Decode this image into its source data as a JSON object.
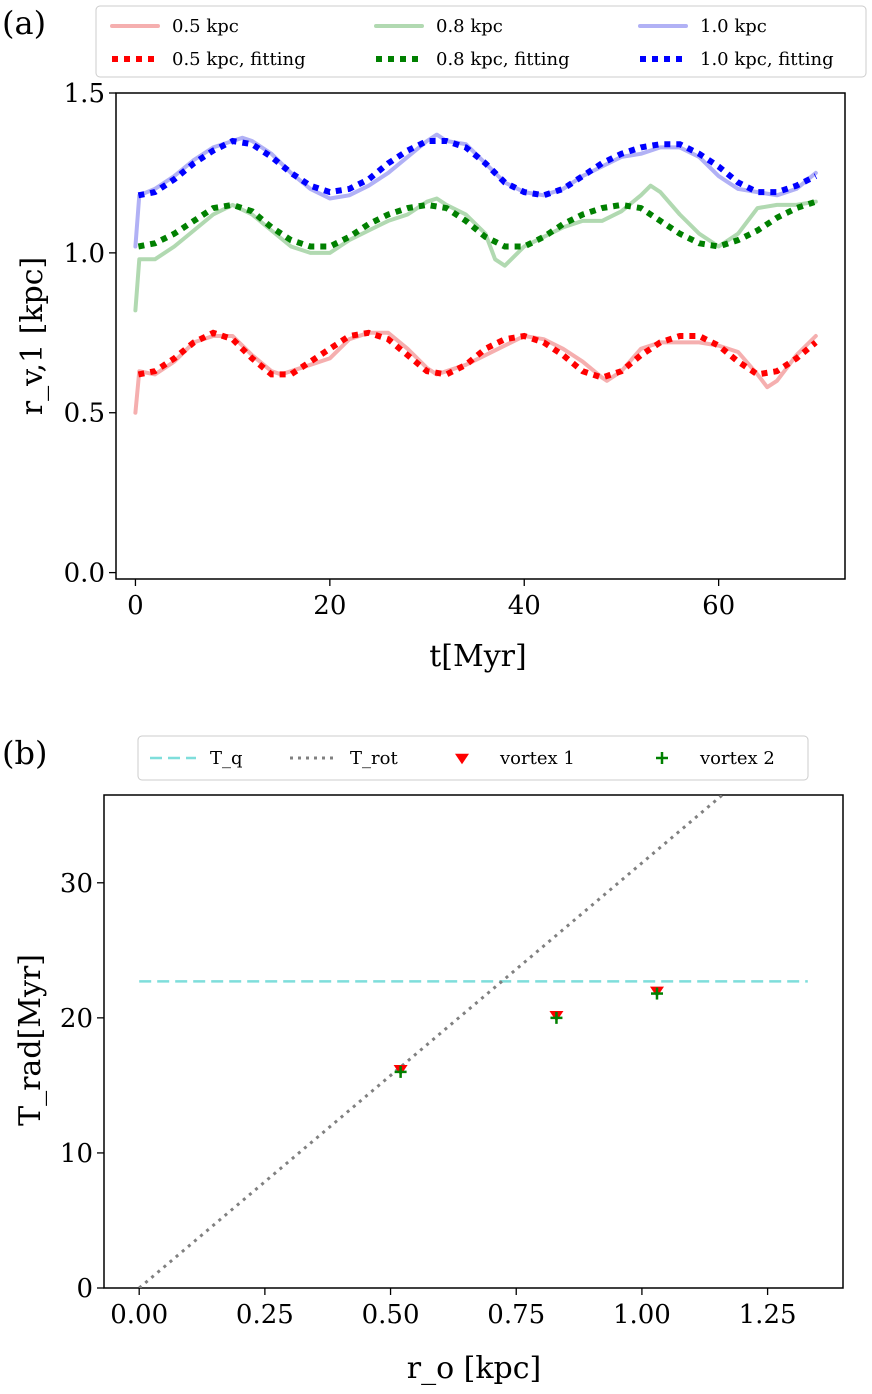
{
  "chart_data": [
    {
      "panel_label": "(a)",
      "type": "line",
      "xlabel": "t[Myr]",
      "ylabel": "r_v,1 [kpc]",
      "xlim": [
        -2,
        73
      ],
      "ylim": [
        -0.02,
        1.5
      ],
      "xticks": [
        0,
        20,
        40,
        60
      ],
      "xtick_labels": [
        "0",
        "20",
        "40",
        "60"
      ],
      "yticks": [
        0.0,
        0.5,
        1.0,
        1.5
      ],
      "ytick_labels": [
        "0.0",
        "0.5",
        "1.0",
        "1.5"
      ],
      "grid": false,
      "legend_position": "top",
      "series": [
        {
          "name": "0.5 kpc",
          "style": "solid",
          "color": "#f4a6a6",
          "x": [
            0,
            0.4,
            2,
            4,
            6,
            8,
            10,
            12,
            14,
            15,
            16,
            18,
            20,
            22,
            24,
            26,
            28,
            30,
            31,
            32,
            34,
            36,
            38,
            40,
            42,
            44,
            46,
            48,
            48.5,
            50,
            52,
            54,
            56,
            58,
            60,
            62,
            64,
            65,
            66,
            68,
            70
          ],
          "y": [
            0.5,
            0.63,
            0.62,
            0.66,
            0.72,
            0.74,
            0.74,
            0.68,
            0.63,
            0.62,
            0.63,
            0.65,
            0.67,
            0.73,
            0.75,
            0.75,
            0.7,
            0.64,
            0.62,
            0.63,
            0.65,
            0.68,
            0.71,
            0.74,
            0.73,
            0.7,
            0.66,
            0.61,
            0.6,
            0.63,
            0.7,
            0.72,
            0.72,
            0.72,
            0.71,
            0.69,
            0.62,
            0.58,
            0.6,
            0.68,
            0.74
          ]
        },
        {
          "name": "0.5 kpc, fitting",
          "style": "dotted",
          "color": "#ff0000",
          "x": [
            0.3,
            2,
            4,
            6,
            8,
            10,
            12,
            14,
            16,
            18,
            20,
            22,
            24,
            26,
            28,
            30,
            32,
            34,
            36,
            38,
            40,
            42,
            44,
            46,
            48,
            50,
            52,
            54,
            56,
            58,
            60,
            62,
            64,
            66,
            68,
            70
          ],
          "y": [
            0.62,
            0.63,
            0.67,
            0.72,
            0.75,
            0.73,
            0.67,
            0.62,
            0.62,
            0.66,
            0.7,
            0.74,
            0.75,
            0.73,
            0.68,
            0.63,
            0.62,
            0.65,
            0.7,
            0.73,
            0.74,
            0.72,
            0.68,
            0.63,
            0.61,
            0.63,
            0.68,
            0.72,
            0.74,
            0.74,
            0.71,
            0.66,
            0.62,
            0.63,
            0.67,
            0.72
          ]
        },
        {
          "name": "0.8 kpc",
          "style": "solid",
          "color": "#a8d5a8",
          "x": [
            0,
            0.4,
            2,
            4,
            6,
            8,
            10,
            12,
            14,
            16,
            18,
            20,
            22,
            24,
            26,
            28,
            30,
            31,
            32,
            34,
            36,
            37,
            38,
            40,
            42,
            44,
            46,
            48,
            50,
            52,
            53,
            54,
            56,
            58,
            60,
            62,
            64,
            66,
            68,
            70
          ],
          "y": [
            0.82,
            0.98,
            0.98,
            1.02,
            1.07,
            1.12,
            1.15,
            1.12,
            1.07,
            1.02,
            1.0,
            1.0,
            1.04,
            1.07,
            1.1,
            1.12,
            1.16,
            1.17,
            1.15,
            1.12,
            1.06,
            0.98,
            0.96,
            1.02,
            1.05,
            1.08,
            1.1,
            1.1,
            1.13,
            1.18,
            1.21,
            1.19,
            1.12,
            1.06,
            1.02,
            1.06,
            1.14,
            1.15,
            1.15,
            1.16
          ]
        },
        {
          "name": "0.8 kpc, fitting",
          "style": "dotted",
          "color": "#008000",
          "x": [
            0.3,
            2,
            4,
            6,
            8,
            10,
            12,
            14,
            16,
            18,
            20,
            22,
            24,
            26,
            28,
            30,
            32,
            34,
            36,
            38,
            40,
            42,
            44,
            46,
            48,
            50,
            52,
            54,
            56,
            58,
            60,
            62,
            64,
            66,
            68,
            70
          ],
          "y": [
            1.02,
            1.03,
            1.06,
            1.1,
            1.14,
            1.15,
            1.13,
            1.08,
            1.04,
            1.02,
            1.02,
            1.05,
            1.09,
            1.12,
            1.14,
            1.15,
            1.14,
            1.1,
            1.05,
            1.02,
            1.02,
            1.05,
            1.09,
            1.12,
            1.14,
            1.15,
            1.14,
            1.1,
            1.06,
            1.03,
            1.02,
            1.04,
            1.07,
            1.11,
            1.14,
            1.16
          ]
        },
        {
          "name": "1.0 kpc",
          "style": "solid",
          "color": "#a8a8f4",
          "x": [
            0,
            0.4,
            2,
            4,
            6,
            8,
            10,
            11,
            12,
            14,
            16,
            18,
            20,
            22,
            24,
            26,
            28,
            30,
            31,
            32,
            34,
            36,
            38,
            40,
            42,
            44,
            46,
            48,
            50,
            52,
            54,
            56,
            58,
            60,
            62,
            64,
            66,
            68,
            70
          ],
          "y": [
            1.02,
            1.18,
            1.2,
            1.24,
            1.29,
            1.33,
            1.35,
            1.36,
            1.35,
            1.31,
            1.25,
            1.2,
            1.17,
            1.18,
            1.21,
            1.25,
            1.3,
            1.35,
            1.37,
            1.35,
            1.34,
            1.28,
            1.22,
            1.19,
            1.18,
            1.2,
            1.24,
            1.27,
            1.3,
            1.31,
            1.33,
            1.33,
            1.3,
            1.24,
            1.2,
            1.19,
            1.18,
            1.2,
            1.25
          ]
        },
        {
          "name": "1.0 kpc, fitting",
          "style": "dotted",
          "color": "#0000ff",
          "x": [
            0.3,
            2,
            4,
            6,
            8,
            10,
            12,
            14,
            16,
            18,
            20,
            22,
            24,
            26,
            28,
            30,
            32,
            34,
            36,
            38,
            40,
            42,
            44,
            46,
            48,
            50,
            52,
            54,
            56,
            58,
            60,
            62,
            64,
            66,
            68,
            70
          ],
          "y": [
            1.18,
            1.19,
            1.23,
            1.28,
            1.32,
            1.35,
            1.34,
            1.3,
            1.25,
            1.21,
            1.19,
            1.2,
            1.23,
            1.28,
            1.32,
            1.35,
            1.35,
            1.33,
            1.28,
            1.22,
            1.19,
            1.18,
            1.2,
            1.24,
            1.28,
            1.31,
            1.33,
            1.34,
            1.34,
            1.31,
            1.27,
            1.22,
            1.19,
            1.19,
            1.21,
            1.24
          ]
        }
      ]
    },
    {
      "panel_label": "(b)",
      "type": "scatter",
      "xlabel": "r_o [kpc]",
      "ylabel": "T_rad[Myr]",
      "xlim": [
        -0.07,
        1.4
      ],
      "ylim": [
        0,
        36.5
      ],
      "xticks": [
        0.0,
        0.25,
        0.5,
        0.75,
        1.0,
        1.25
      ],
      "xtick_labels": [
        "0.00",
        "0.25",
        "0.50",
        "0.75",
        "1.00",
        "1.25"
      ],
      "yticks": [
        0,
        10,
        20,
        30
      ],
      "ytick_labels": [
        "0",
        "10",
        "20",
        "30"
      ],
      "grid": false,
      "legend_position": "top",
      "series": [
        {
          "name": "T_q",
          "style": "dashed",
          "color": "#7fdedb",
          "x": [
            0.0,
            1.33
          ],
          "y": [
            22.7,
            22.7
          ]
        },
        {
          "name": "T_rot",
          "style": "dotted",
          "color": "#808080",
          "x": [
            0.0,
            1.16
          ],
          "y": [
            0.0,
            36.5
          ]
        },
        {
          "name": "vortex 1",
          "style": "marker-triangle-down",
          "color": "#ff0000",
          "x": [
            0.52,
            0.83,
            1.03
          ],
          "y": [
            16.2,
            20.2,
            22.0
          ]
        },
        {
          "name": "vortex 2",
          "style": "marker-plus",
          "color": "#008000",
          "x": [
            0.52,
            0.83,
            1.03
          ],
          "y": [
            16.0,
            20.0,
            21.8
          ]
        }
      ]
    }
  ]
}
